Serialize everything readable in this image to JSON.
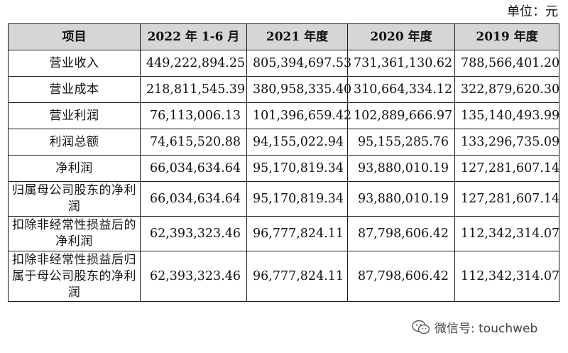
{
  "unit_label": "单位：元",
  "table": {
    "headers": [
      "项目",
      "2022 年 1-6 月",
      "2021 年度",
      "2020 年度",
      "2019 年度"
    ],
    "rows": [
      {
        "item": "营业收入",
        "values": [
          "449,222,894.25",
          "805,394,697.53",
          "731,361,130.62",
          "788,566,401.20"
        ]
      },
      {
        "item": "营业成本",
        "values": [
          "218,811,545.39",
          "380,958,335.40",
          "310,664,334.12",
          "322,879,620.30"
        ]
      },
      {
        "item": "营业利润",
        "values": [
          "76,113,006.13",
          "101,396,659.42",
          "102,889,666.97",
          "135,140,493.99"
        ]
      },
      {
        "item": "利润总额",
        "values": [
          "74,615,520.88",
          "94,155,022.94",
          "95,155,285.76",
          "133,296,735.09"
        ]
      },
      {
        "item": "净利润",
        "values": [
          "66,034,634.64",
          "95,170,819.34",
          "93,880,010.19",
          "127,281,607.14"
        ]
      },
      {
        "item": "归属母公司股东的净利润",
        "values": [
          "66,034,634.64",
          "95,170,819.34",
          "93,880,010.19",
          "127,281,607.14"
        ]
      },
      {
        "item": "扣除非经常性损益后的净利润",
        "values": [
          "62,393,323.46",
          "96,777,824.11",
          "87,798,606.42",
          "112,342,314.07"
        ]
      },
      {
        "item": "扣除非经常性损益后归属于母公司股东的净利润",
        "values": [
          "62,393,323.46",
          "96,777,824.11",
          "87,798,606.42",
          "112,342,314.07"
        ]
      }
    ]
  },
  "watermark": {
    "icon": "wechat-icon",
    "text": "微信号: touchweb"
  }
}
